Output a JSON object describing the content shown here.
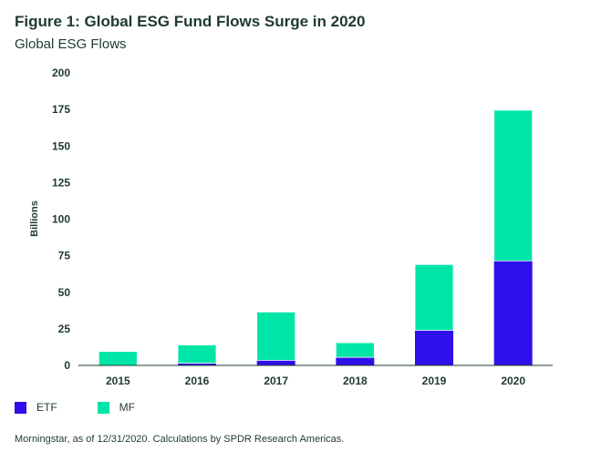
{
  "title": "Figure 1: Global ESG Fund Flows Surge in 2020",
  "subtitle": "Global ESG Flows",
  "source": "Morningstar, as of 12/31/2020. Calculations by SPDR Research Americas.",
  "chart_data": {
    "type": "bar",
    "stacked": true,
    "categories": [
      "2015",
      "2016",
      "2017",
      "2018",
      "2019",
      "2020"
    ],
    "series": [
      {
        "name": "ETF",
        "color": "#2f0fea",
        "values": [
          0,
          1.5,
          3.5,
          5.5,
          24,
          71.5
        ]
      },
      {
        "name": "MF",
        "color": "#00e5a8",
        "values": [
          9.5,
          12.5,
          33,
          10,
          45,
          103
        ]
      }
    ],
    "ylabel": "Billions",
    "xlabel": "",
    "ylim": [
      0,
      200
    ],
    "yticks": [
      "0",
      "25",
      "50",
      "75",
      "100",
      "125",
      "150",
      "175",
      "200"
    ],
    "grid": false,
    "legend_position": "bottom-left"
  }
}
